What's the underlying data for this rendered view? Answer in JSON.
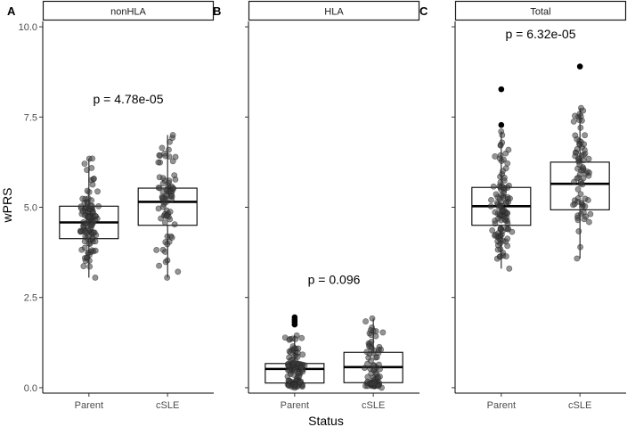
{
  "chart_data": {
    "type": "boxplot",
    "ylabel": "wPRS",
    "xlabel": "Status",
    "ylim": [
      -0.15,
      10.15
    ],
    "yticks": [
      "0.0",
      "2.5",
      "5.0",
      "7.5",
      "10.0"
    ],
    "yticks_values": [
      0,
      2.5,
      5,
      7.5,
      10
    ],
    "categories": [
      "Parent",
      "cSLE"
    ],
    "panels": [
      {
        "tag": "A",
        "strip_label": "nonHLA",
        "pvalue_text": "p = 4.78e-05",
        "pvalue_y": 8.0,
        "groups": [
          {
            "name": "Parent",
            "min": 3.05,
            "q1": 4.13,
            "median": 4.58,
            "q3": 5.03,
            "max": 6.35,
            "outliers": [],
            "n": 110
          },
          {
            "name": "cSLE",
            "min": 3.05,
            "q1": 4.5,
            "median": 5.15,
            "q3": 5.53,
            "max": 7.0,
            "outliers": [],
            "n": 75
          }
        ]
      },
      {
        "tag": "B",
        "strip_label": "HLA",
        "pvalue_text": "p = 0.096",
        "pvalue_y": 3.0,
        "groups": [
          {
            "name": "Parent",
            "min": 0.0,
            "q1": 0.13,
            "median": 0.52,
            "q3": 0.67,
            "max": 1.45,
            "outliers": [
              1.95,
              1.88,
              1.82,
              1.75
            ],
            "n": 110
          },
          {
            "name": "cSLE",
            "min": 0.0,
            "q1": 0.14,
            "median": 0.57,
            "q3": 0.98,
            "max": 1.92,
            "outliers": [],
            "n": 75
          }
        ]
      },
      {
        "tag": "C",
        "strip_label": "Total",
        "pvalue_text": "p = 6.32e-05",
        "pvalue_y": 9.8,
        "groups": [
          {
            "name": "Parent",
            "min": 3.3,
            "q1": 4.5,
            "median": 5.03,
            "q3": 5.55,
            "max": 7.1,
            "outliers": [
              8.27,
              7.28
            ],
            "n": 110
          },
          {
            "name": "cSLE",
            "min": 3.58,
            "q1": 4.93,
            "median": 5.65,
            "q3": 6.25,
            "max": 7.75,
            "outliers": [
              8.9
            ],
            "n": 75
          }
        ]
      }
    ]
  }
}
